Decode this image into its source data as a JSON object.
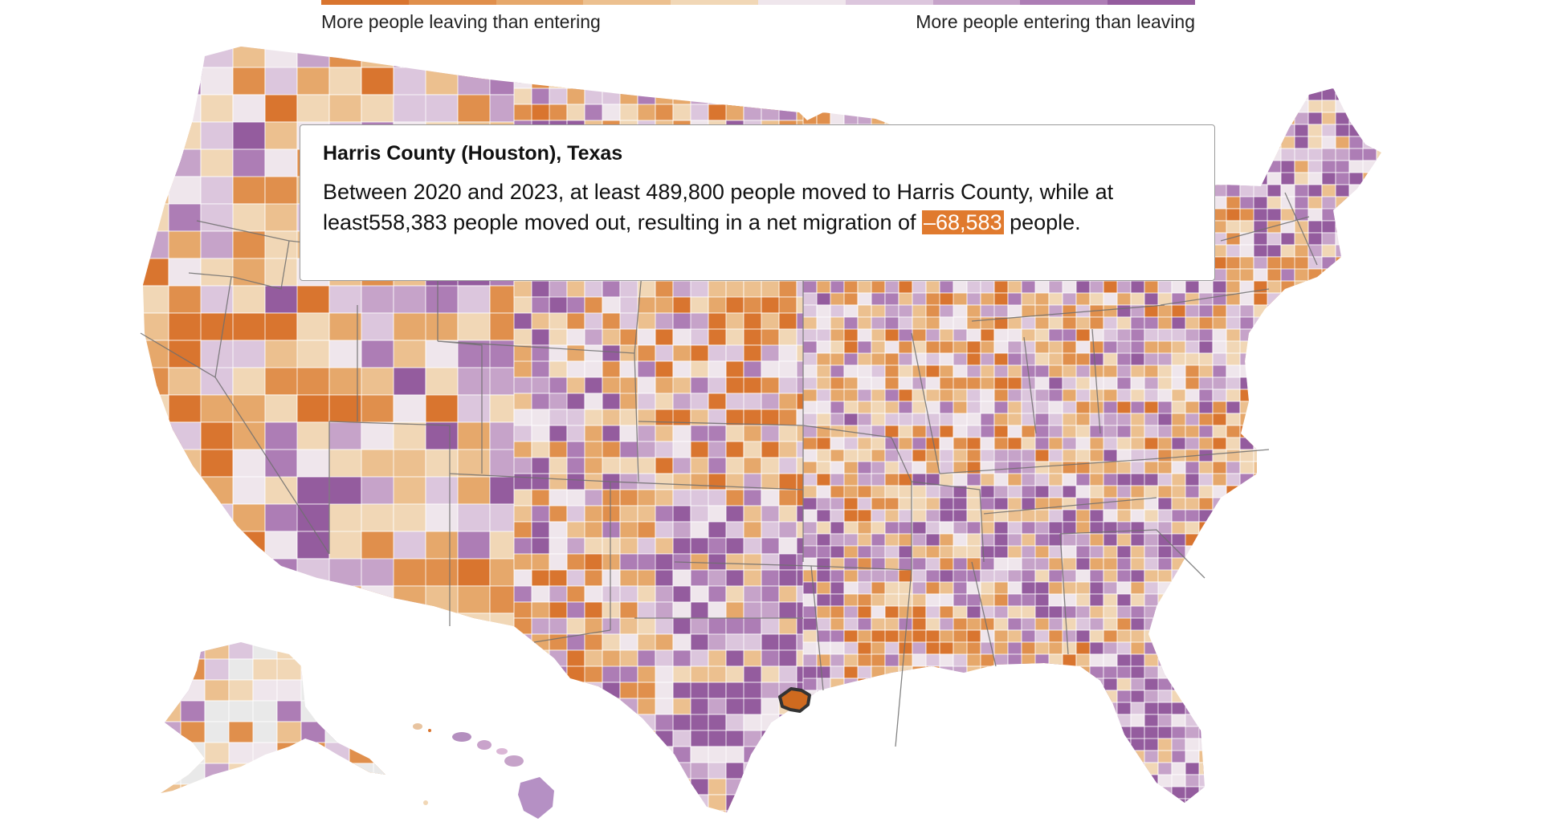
{
  "legend": {
    "left_label": "More people leaving than entering",
    "right_label": "More people entering than leaving",
    "colors": [
      "#d9752f",
      "#e08f4c",
      "#e6a86b",
      "#ecc08f",
      "#f1d7b6",
      "#efe6ec",
      "#dcc6dd",
      "#c6a3c9",
      "#ad7db5",
      "#945c9e"
    ]
  },
  "tooltip": {
    "title": "Harris County (Houston), Texas",
    "text_before": "Between 2020 and 2023, at least 489,800 people moved to Harris County, while at least558,383 people moved out, resulting in a net migration of ",
    "net_migration": "–68,583",
    "text_after": " people."
  },
  "map": {
    "highlighted_region": "Harris County",
    "highlight_outline_color": "#333333",
    "state_border_color": "#6f6f6f",
    "county_border_color": "#ffffff"
  }
}
